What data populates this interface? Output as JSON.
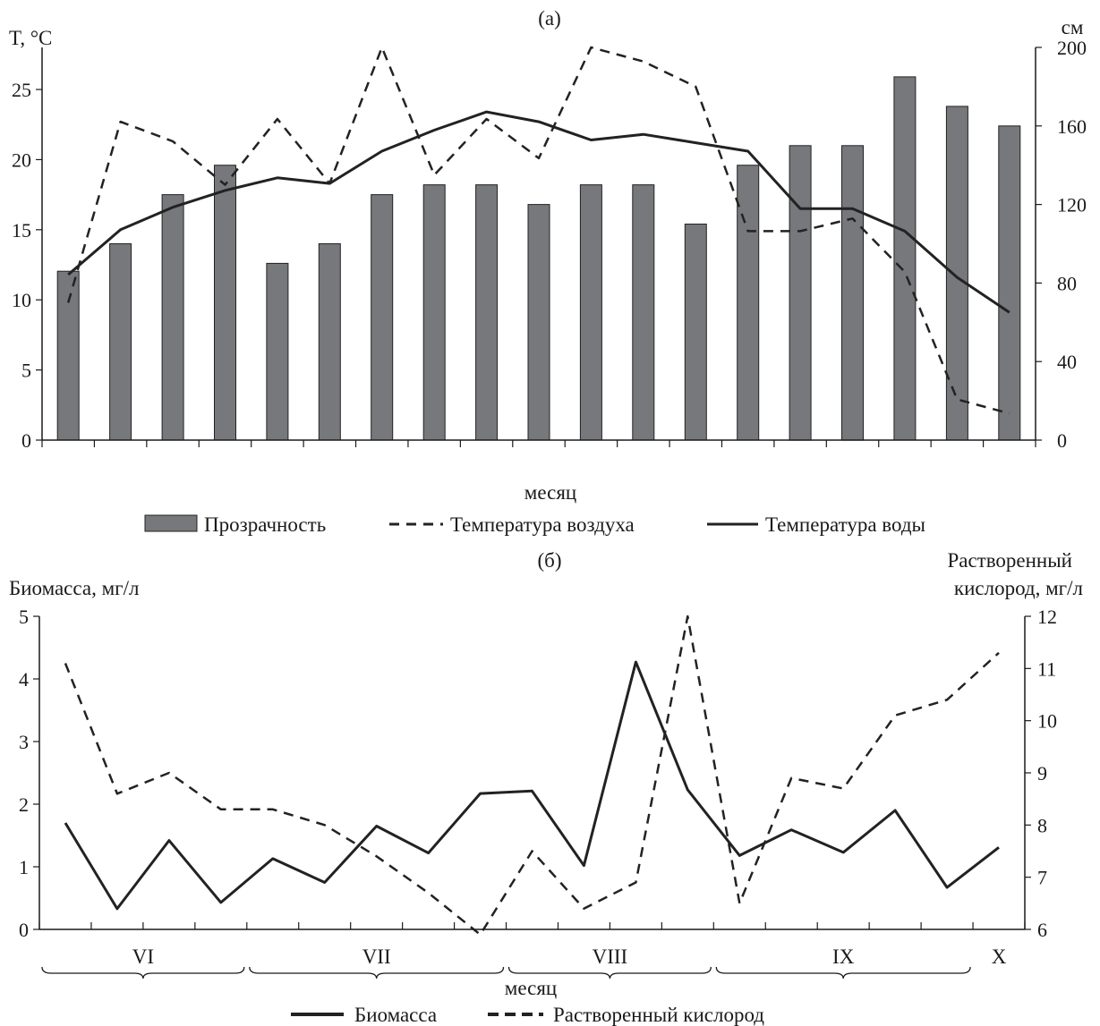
{
  "colors": {
    "bar": "#77787b",
    "line": "#222222",
    "axis": "#1a1a1a",
    "background": "#ffffff"
  },
  "chart_data": [
    {
      "panel": "(a)",
      "type": "bar+line",
      "title": "(а)",
      "xlabel": "месяц",
      "ylabel_left": "T, °C",
      "ylabel_right": "см",
      "ylim_left": [
        0,
        28
      ],
      "yticks_left": [
        "0",
        "5",
        "10",
        "15",
        "20",
        "25"
      ],
      "ylim_right": [
        0,
        200
      ],
      "yticks_right": [
        "0",
        "40",
        "80",
        "120",
        "160",
        "200"
      ],
      "grid": false,
      "legend_position": "bottom",
      "series": [
        {
          "name": "Прозрачность",
          "type": "bar",
          "axis": "right",
          "values": [
            86,
            100,
            125,
            140,
            90,
            100,
            125,
            130,
            130,
            120,
            130,
            130,
            110,
            140,
            150,
            150,
            185,
            170,
            160
          ]
        },
        {
          "name": "Температура воздуха",
          "type": "line",
          "style": "dashed",
          "axis": "left",
          "values": [
            9.8,
            22.7,
            21.3,
            18.2,
            22.9,
            18.3,
            28.0,
            18.9,
            22.9,
            20.1,
            28.0,
            27.0,
            25.2,
            14.9,
            14.9,
            15.8,
            12.0,
            2.9,
            1.9
          ]
        },
        {
          "name": "Температура воды",
          "type": "line",
          "style": "solid",
          "axis": "left",
          "values": [
            11.8,
            15.0,
            16.6,
            17.8,
            18.7,
            18.3,
            20.6,
            22.1,
            23.4,
            22.7,
            21.4,
            21.8,
            21.2,
            20.6,
            16.5,
            16.5,
            14.9,
            11.6,
            9.1
          ]
        }
      ]
    },
    {
      "panel": "(b)",
      "type": "line",
      "title": "(б)",
      "xlabel": "месяц",
      "ylabel_left": "Биомасса, мг/л",
      "ylabel_right_line1": "Растворенный",
      "ylabel_right_line2": "кислород, мг/л",
      "ylim_left": [
        0,
        5
      ],
      "yticks_left": [
        "0",
        "1",
        "2",
        "3",
        "4",
        "5"
      ],
      "ylim_right": [
        6,
        12
      ],
      "yticks_right": [
        "6",
        "7",
        "8",
        "9",
        "10",
        "11",
        "12"
      ],
      "months": [
        "VI",
        "VII",
        "VIII",
        "IX",
        "X"
      ],
      "grid": false,
      "legend_position": "bottom",
      "series": [
        {
          "name": "Биомасса",
          "style": "solid",
          "axis": "left",
          "values": [
            1.7,
            0.33,
            1.42,
            0.43,
            1.13,
            0.75,
            1.65,
            1.22,
            2.17,
            2.21,
            1.02,
            4.27,
            2.23,
            1.18,
            1.59,
            1.23,
            1.9,
            0.67,
            1.31
          ]
        },
        {
          "name": "Растворенный кислород",
          "style": "dashed",
          "axis": "right",
          "values": [
            11.1,
            8.6,
            9.0,
            8.3,
            8.3,
            8.0,
            7.4,
            6.7,
            5.9,
            7.5,
            6.4,
            6.9,
            12.0,
            6.5,
            8.9,
            8.7,
            10.1,
            10.4,
            11.3
          ]
        }
      ]
    }
  ]
}
